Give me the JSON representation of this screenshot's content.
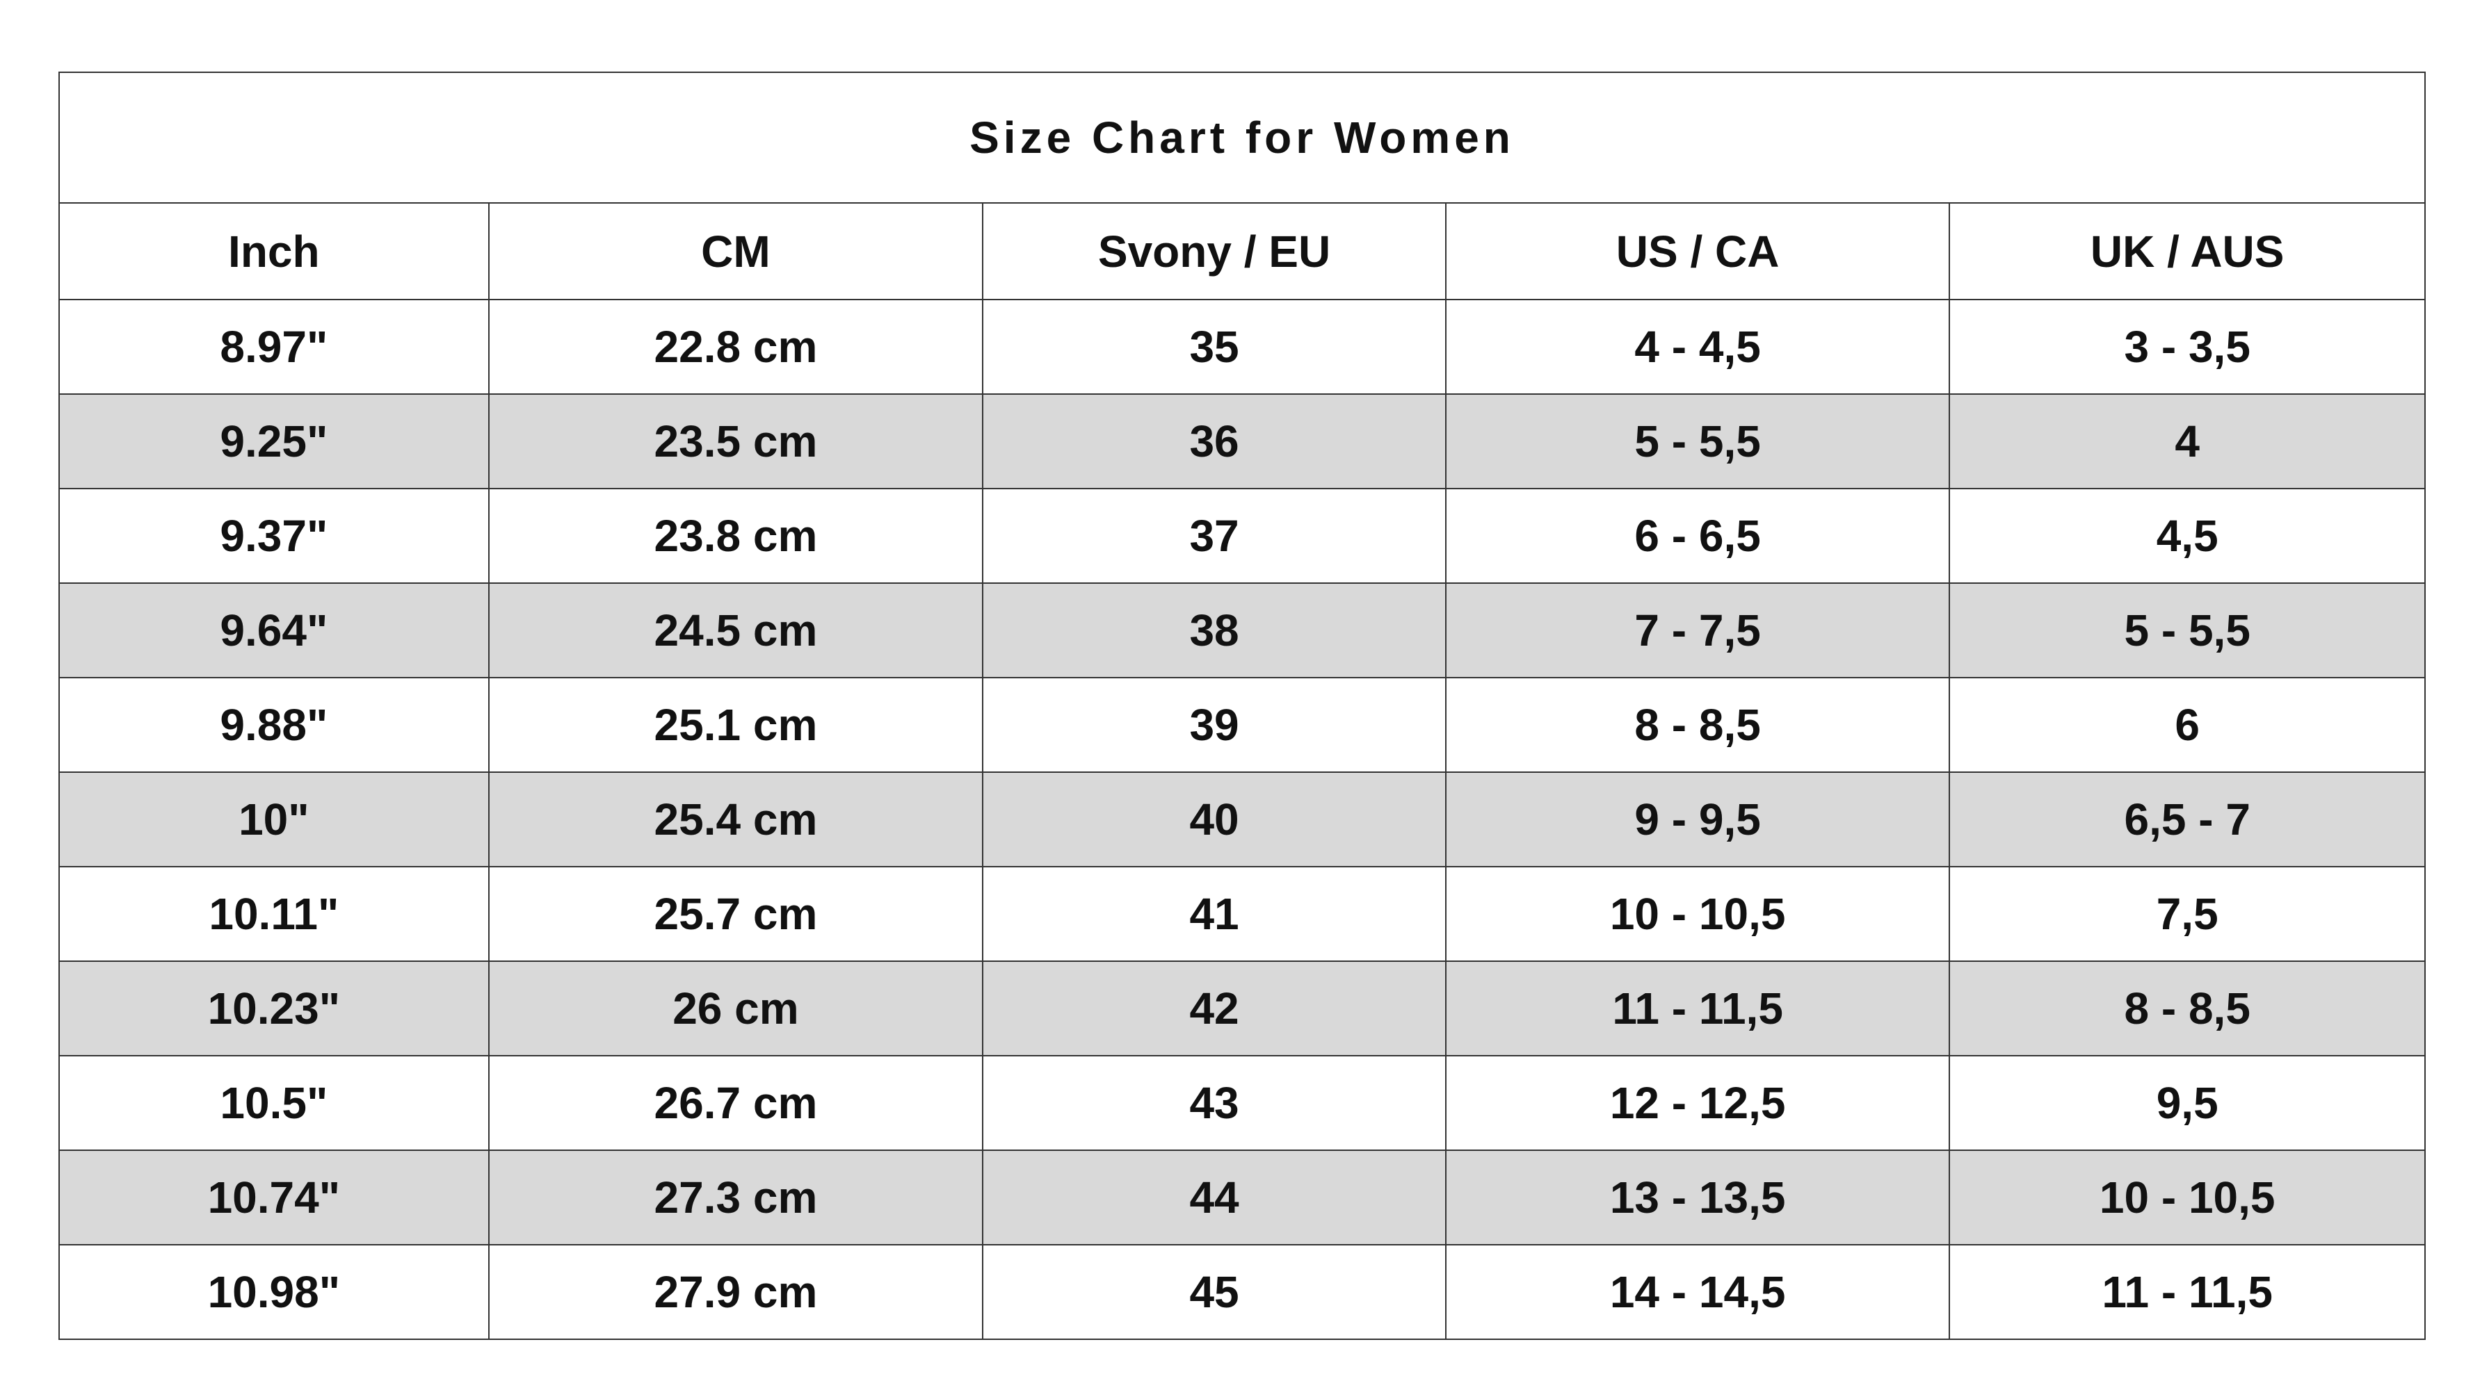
{
  "title": "Size Chart for Women",
  "columns": [
    "Inch",
    "CM",
    "Svony / EU",
    "US / CA",
    "UK / AUS"
  ],
  "rows": [
    [
      "8.97\"",
      "22.8 cm",
      "35",
      "4 - 4,5",
      "3 - 3,5"
    ],
    [
      "9.25\"",
      "23.5 cm",
      "36",
      "5 - 5,5",
      "4"
    ],
    [
      "9.37\"",
      "23.8 cm",
      "37",
      "6 - 6,5",
      "4,5"
    ],
    [
      "9.64\"",
      "24.5 cm",
      "38",
      "7 - 7,5",
      "5 - 5,5"
    ],
    [
      "9.88\"",
      "25.1 cm",
      "39",
      "8 - 8,5",
      "6"
    ],
    [
      "10\"",
      "25.4 cm",
      "40",
      "9 - 9,5",
      "6,5 - 7"
    ],
    [
      "10.11\"",
      "25.7 cm",
      "41",
      "10 - 10,5",
      "7,5"
    ],
    [
      "10.23\"",
      "26 cm",
      "42",
      "11 - 11,5",
      "8 - 8,5"
    ],
    [
      "10.5\"",
      "26.7 cm",
      "43",
      "12 - 12,5",
      "9,5"
    ],
    [
      "10.74\"",
      "27.3 cm",
      "44",
      "13 - 13,5",
      "10 - 10,5"
    ],
    [
      "10.98\"",
      "27.9 cm",
      "45",
      "14 - 14,5",
      "11 - 11,5"
    ]
  ],
  "colors": {
    "stripe": "#d9d9d9",
    "border": "#333333",
    "text": "#111111"
  }
}
